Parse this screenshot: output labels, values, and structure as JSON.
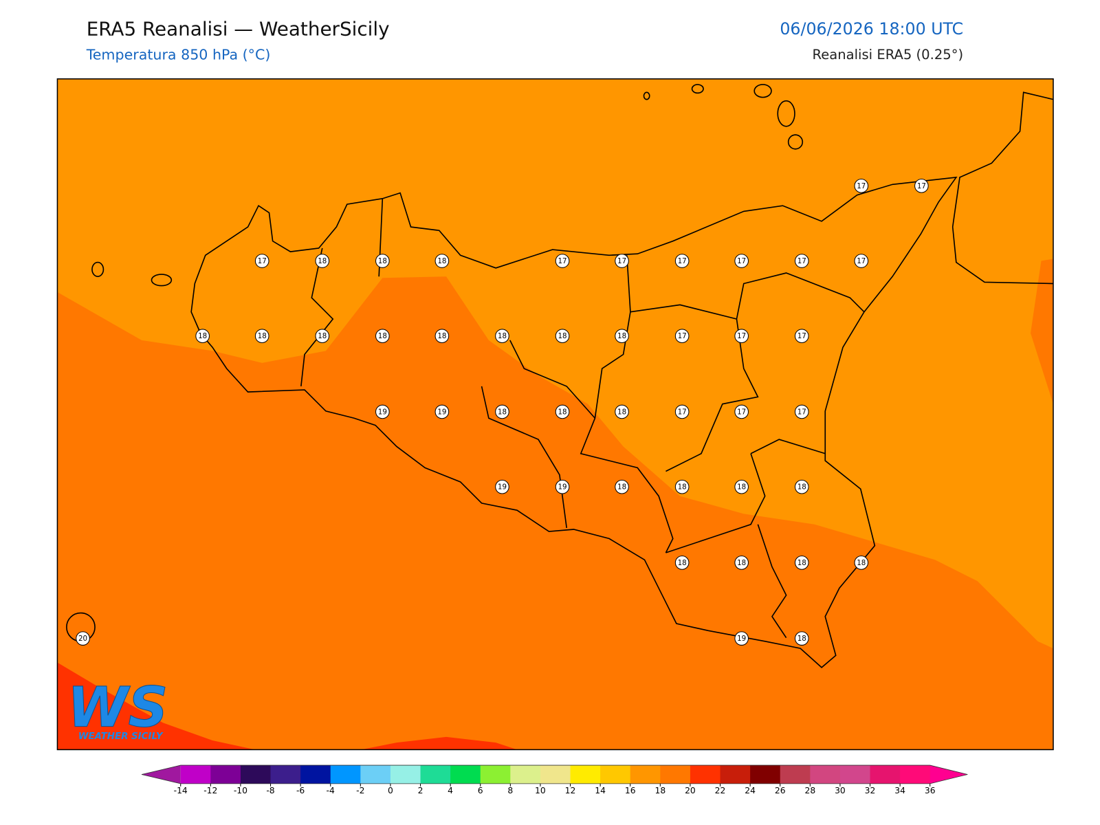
{
  "header": {
    "title": "ERA5 Reanalisi — WeatherSicily",
    "subtitle": "Temperatura 850 hPa (°C)",
    "datetime": "06/06/2026 18:00 UTC",
    "source": "Reanalisi ERA5 (0.25°)"
  },
  "stations": [
    17,
    17,
    17,
    18,
    18,
    18,
    17,
    17,
    17,
    17,
    17,
    17,
    18,
    18,
    18,
    18,
    18,
    18,
    18,
    18,
    17,
    17,
    17,
    19,
    19,
    18,
    18,
    18,
    17,
    17,
    17,
    19,
    19,
    18,
    18,
    18,
    18,
    18,
    18,
    18,
    18,
    20,
    19,
    18
  ],
  "colorbar": {
    "ticks": [
      -14,
      -12,
      -10,
      -8,
      -6,
      -4,
      -2,
      0,
      2,
      4,
      6,
      8,
      10,
      12,
      14,
      16,
      18,
      20,
      22,
      24,
      26,
      28,
      30,
      32,
      34,
      36
    ],
    "colors": [
      "#a0189f",
      "#c000c8",
      "#7d0096",
      "#2d0a5a",
      "#3c1e8c",
      "#0014a0",
      "#0096ff",
      "#6ccff6",
      "#96f0e6",
      "#1edc96",
      "#00dc50",
      "#8cf032",
      "#dcf08c",
      "#f0e68c",
      "#ffeb00",
      "#ffc800",
      "#ff9600",
      "#ff7800",
      "#ff3200",
      "#c81e0a",
      "#800000",
      "#be3c50",
      "#d24680",
      "#d2468c",
      "#e6146e",
      "#ff0a78",
      "#ff0090"
    ]
  },
  "logo": {
    "mark": "WS",
    "name": "WEATHER SICILY"
  }
}
